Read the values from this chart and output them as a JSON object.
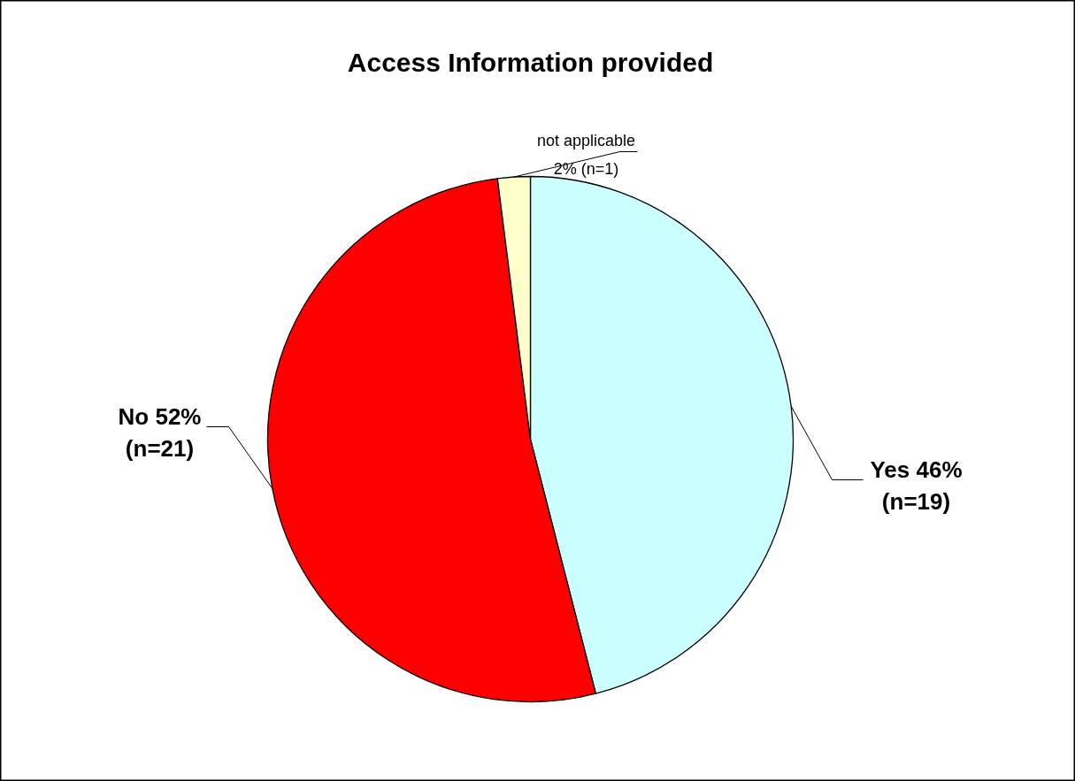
{
  "chart_data": {
    "type": "pie",
    "title": "Access Information provided",
    "categories": [
      "Yes",
      "No",
      "not applicable"
    ],
    "values": [
      46,
      52,
      2
    ],
    "colors": [
      "#ccffff",
      "#ff0000",
      "#ffffcc"
    ],
    "value_labels": [
      "46% (n=19)",
      "52% (n=21)",
      "2% (n=1)"
    ]
  }
}
